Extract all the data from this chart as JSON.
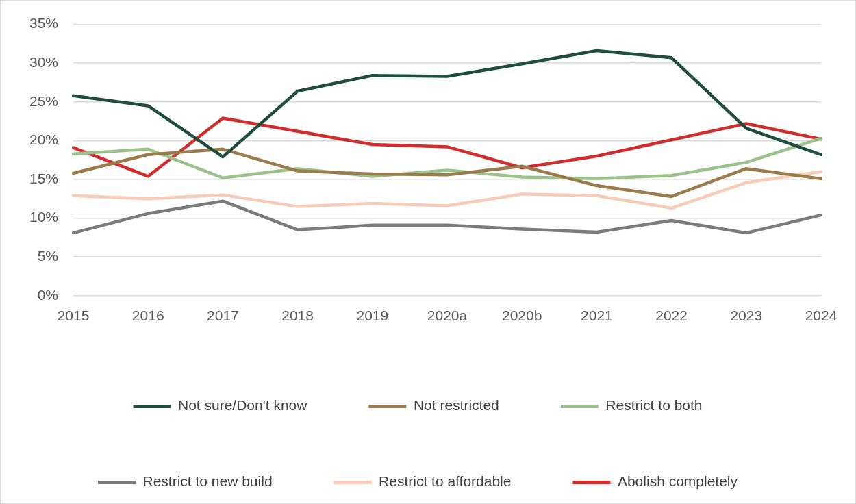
{
  "chart_data": {
    "type": "line",
    "categories": [
      "2015",
      "2016",
      "2017",
      "2018",
      "2019",
      "2020a",
      "2020b",
      "2021",
      "2022",
      "2023",
      "2024"
    ],
    "series": [
      {
        "name": "Not sure/Don't know",
        "color": "#1f4d3e",
        "values": [
          25.8,
          24.5,
          17.9,
          26.4,
          28.4,
          28.3,
          29.9,
          31.6,
          30.7,
          21.6,
          18.2
        ]
      },
      {
        "name": "Not restricted",
        "color": "#9b7a4c",
        "values": [
          15.8,
          18.2,
          18.9,
          16.1,
          15.7,
          15.6,
          16.7,
          14.2,
          12.8,
          16.4,
          15.1
        ]
      },
      {
        "name": "Restrict to both",
        "color": "#9cc28b",
        "values": [
          18.3,
          18.9,
          15.2,
          16.4,
          15.4,
          16.2,
          15.3,
          15.1,
          15.5,
          17.2,
          20.3
        ]
      },
      {
        "name": "Restrict to new build",
        "color": "#7b7b79",
        "values": [
          8.1,
          10.6,
          12.2,
          8.5,
          9.1,
          9.1,
          8.6,
          8.2,
          9.7,
          8.1,
          10.4
        ]
      },
      {
        "name": "Restrict to affordable",
        "color": "#f8cbb8",
        "values": [
          12.9,
          12.5,
          13.0,
          11.5,
          11.9,
          11.6,
          13.1,
          12.9,
          11.3,
          14.6,
          16.0
        ]
      },
      {
        "name": "Abolish completely",
        "color": "#d12d2d",
        "values": [
          19.1,
          15.4,
          22.9,
          21.2,
          19.5,
          19.2,
          16.5,
          18.0,
          20.1,
          22.2,
          20.2
        ]
      }
    ],
    "ylim": [
      0,
      35
    ],
    "yticks": [
      {
        "value": 0,
        "label": "0%"
      },
      {
        "value": 5,
        "label": "5%"
      },
      {
        "value": 10,
        "label": "10%"
      },
      {
        "value": 15,
        "label": "15%"
      },
      {
        "value": 20,
        "label": "20%"
      },
      {
        "value": 25,
        "label": "25%"
      },
      {
        "value": 30,
        "label": "30%"
      },
      {
        "value": 35,
        "label": "35%"
      }
    ],
    "grid": "y",
    "legend": "bottom",
    "marker": "none",
    "line_style": "solid"
  }
}
